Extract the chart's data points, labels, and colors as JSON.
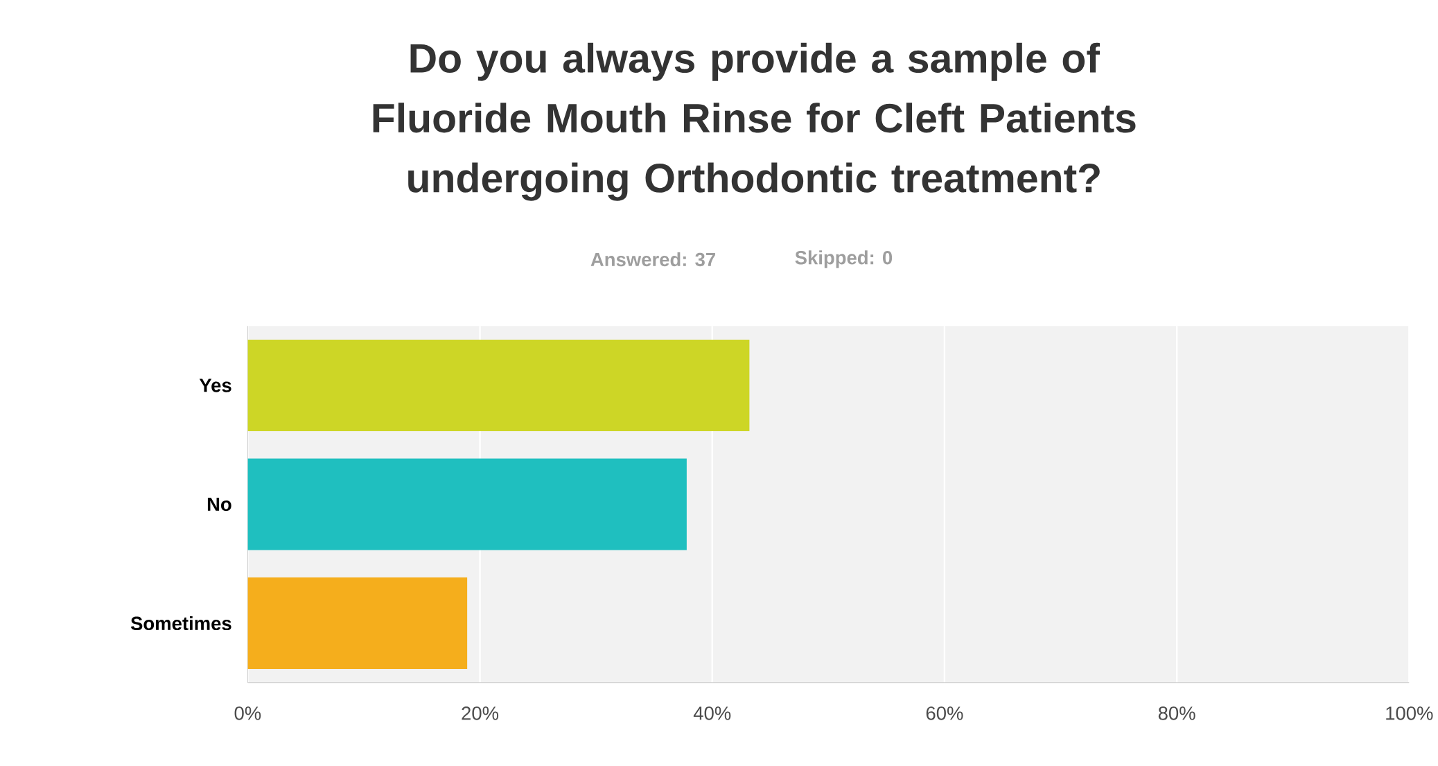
{
  "chart_data": {
    "type": "bar",
    "orientation": "horizontal",
    "title": "Do you always provide a sample of Fluoride Mouth Rinse for Cleft Patients undergoing Orthodontic treatment?",
    "annotations": [
      "Answered: 37",
      "Skipped: 0"
    ],
    "categories": [
      "Yes",
      "No",
      "Sometimes"
    ],
    "values": [
      43.2,
      37.8,
      18.9
    ],
    "colors": [
      "#cdd626",
      "#1fbfbf",
      "#f5ae1c"
    ],
    "xlim": [
      0,
      100
    ],
    "xticks": [
      {
        "value": 0,
        "label": "0%"
      },
      {
        "value": 20,
        "label": "20%"
      },
      {
        "value": 40,
        "label": "40%"
      },
      {
        "value": 60,
        "label": "60%"
      },
      {
        "value": 80,
        "label": "80%"
      },
      {
        "value": 100,
        "label": "100%"
      }
    ],
    "grid": "x"
  }
}
